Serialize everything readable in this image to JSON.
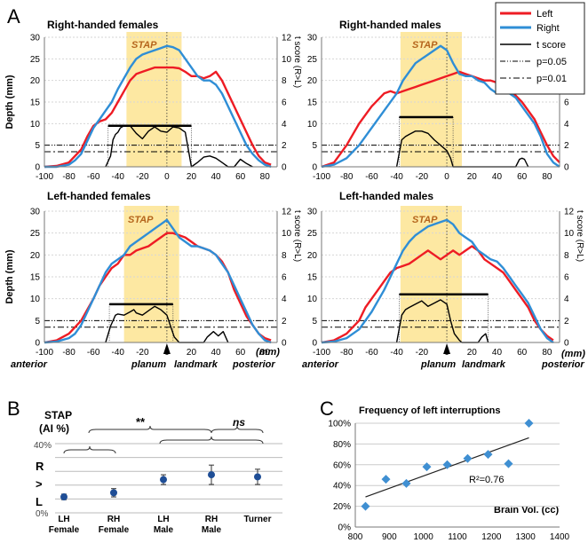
{
  "panel_labels": {
    "a": "A",
    "b": "B",
    "c": "C"
  },
  "panel_a": {
    "left_axis_label": "Depth (mm)",
    "right_axis_label": "t score (R>L)",
    "stap_label": "STAP",
    "x_ticks": [
      -100,
      -80,
      -60,
      -40,
      -20,
      0,
      20,
      40,
      60,
      80
    ],
    "depth_ticks": [
      0,
      5,
      10,
      15,
      20,
      25,
      30
    ],
    "t_ticks": [
      0,
      2,
      4,
      6,
      8,
      10,
      12
    ],
    "bottom_labels": {
      "anterior": "anterior",
      "planum": "planum",
      "landmark": "landmark",
      "mm": "(mm)",
      "posterior": "posterior"
    },
    "legend": {
      "left": "Left",
      "right": "Right",
      "t": "t score",
      "p05": "p=0.05",
      "p01": "p=0.01"
    },
    "colors": {
      "left": "#ee1c24",
      "right": "#2f8ed6",
      "stap": "#fde8a2"
    }
  },
  "panel_b": {
    "title_line1": "STAP",
    "title_line2": "(AI %)",
    "y_ticks": [
      "40%",
      "0%"
    ],
    "letters": [
      "R",
      ">",
      "L"
    ],
    "sig_labels": [
      "**",
      "ns"
    ],
    "categories": [
      [
        "LH",
        "Female"
      ],
      [
        "RH",
        "Female"
      ],
      [
        "LH",
        "Male"
      ],
      [
        "RH",
        "Male"
      ],
      [
        "Turner",
        ""
      ]
    ]
  },
  "panel_c": {
    "title": "Frequency of left interruptions",
    "x_label": "Brain Vol. (cc)",
    "r2_label": "R²=0.76",
    "x_ticks": [
      "800",
      "900",
      "1000",
      "1100",
      "1200",
      "1300",
      "1400"
    ],
    "y_ticks": [
      "0%",
      "20%",
      "40%",
      "60%",
      "80%",
      "100%"
    ]
  },
  "chart_data": [
    {
      "type": "line",
      "title": "Right-handed females",
      "xlim": [
        -100,
        90
      ],
      "ylim": [
        0,
        30
      ],
      "y2lim": [
        0,
        12
      ],
      "stap": [
        -33,
        12
      ],
      "series": [
        {
          "name": "Left",
          "x": [
            -100,
            -90,
            -80,
            -70,
            -65,
            -60,
            -55,
            -50,
            -45,
            -40,
            -35,
            -30,
            -25,
            -20,
            -15,
            -10,
            -5,
            0,
            5,
            10,
            15,
            20,
            25,
            30,
            35,
            40,
            45,
            50,
            55,
            60,
            65,
            70,
            75,
            80,
            85
          ],
          "y": [
            0,
            0.2,
            1,
            4,
            7,
            9.5,
            10.5,
            11,
            12.5,
            15,
            17.5,
            20,
            21.5,
            22,
            22.5,
            23,
            23,
            23,
            23,
            22.8,
            22,
            21,
            21,
            20.5,
            21,
            22,
            20,
            17,
            14,
            11,
            8,
            5,
            2.5,
            1,
            0.5
          ]
        },
        {
          "name": "Right",
          "x": [
            -100,
            -90,
            -80,
            -75,
            -70,
            -65,
            -60,
            -55,
            -50,
            -45,
            -40,
            -35,
            -30,
            -25,
            -20,
            -15,
            -10,
            -5,
            0,
            5,
            10,
            15,
            20,
            25,
            30,
            35,
            40,
            45,
            50,
            55,
            60,
            65,
            70,
            75,
            80,
            85
          ],
          "y": [
            0,
            0,
            0.5,
            1.5,
            3,
            6,
            9,
            11,
            13,
            15,
            18,
            20.5,
            23,
            25,
            26,
            26.5,
            27,
            27.5,
            28,
            27.7,
            27,
            25,
            23,
            21,
            20,
            20,
            19,
            17,
            14,
            11,
            8,
            5,
            3,
            1.5,
            0.5,
            0
          ]
        },
        {
          "name": "t score",
          "x": [
            -50,
            -46,
            -44,
            -42,
            -40,
            -38,
            -35,
            -30,
            -25,
            -20,
            -15,
            -10,
            -5,
            0,
            5,
            10,
            15,
            20,
            25,
            30,
            35,
            40,
            45,
            50,
            55,
            60,
            65,
            70
          ],
          "y": [
            0,
            1,
            2.5,
            3,
            3.2,
            3.6,
            3.8,
            3.8,
            3.1,
            2.6,
            3.3,
            3.7,
            3.3,
            3.2,
            3.7,
            3.6,
            3.2,
            0,
            0.4,
            0.9,
            1,
            0.8,
            0.4,
            0,
            0,
            0.7,
            0.3,
            0
          ]
        }
      ],
      "threshold_p05": 2,
      "threshold_p01": 1.4,
      "cluster": [
        -48,
        20,
        3.8
      ]
    },
    {
      "type": "line",
      "title": "Right-handed males",
      "xlim": [
        -100,
        90
      ],
      "ylim": [
        0,
        30
      ],
      "y2lim": [
        0,
        12
      ],
      "stap": [
        -37,
        12
      ],
      "series": [
        {
          "name": "Left",
          "x": [
            -100,
            -90,
            -80,
            -70,
            -60,
            -50,
            -45,
            -40,
            -35,
            -30,
            -25,
            -20,
            -15,
            -10,
            -5,
            0,
            5,
            10,
            15,
            20,
            25,
            30,
            35,
            40,
            45,
            50,
            55,
            60,
            65,
            70,
            75,
            80,
            85,
            90
          ],
          "y": [
            0,
            1,
            5,
            10,
            14,
            17,
            17.5,
            17,
            17.5,
            18,
            18.5,
            19,
            19.5,
            20,
            20.5,
            21,
            21.5,
            22,
            21.5,
            21,
            20.5,
            20,
            20,
            19.5,
            19,
            18,
            16.5,
            15,
            13,
            11,
            8,
            5,
            2.5,
            1
          ]
        },
        {
          "name": "Right",
          "x": [
            -100,
            -90,
            -80,
            -70,
            -60,
            -50,
            -40,
            -35,
            -30,
            -25,
            -20,
            -15,
            -10,
            -5,
            0,
            5,
            10,
            15,
            20,
            25,
            30,
            35,
            40,
            45,
            50,
            55,
            60,
            65,
            70,
            75,
            80,
            85,
            90
          ],
          "y": [
            0,
            0.5,
            2,
            5,
            9,
            13,
            17,
            20,
            22,
            24,
            25,
            26,
            27,
            28,
            27,
            24,
            21.5,
            21,
            21,
            20,
            19.5,
            18,
            17,
            17.5,
            17,
            16,
            14,
            12,
            10,
            7,
            3,
            1,
            0
          ]
        },
        {
          "name": "t score",
          "x": [
            -40,
            -36,
            -33,
            -30,
            -25,
            -20,
            -15,
            -10,
            -5,
            0,
            3,
            5,
            55,
            58,
            60,
            62,
            65
          ],
          "y": [
            0,
            2.5,
            2.8,
            3,
            3.3,
            3.3,
            3.1,
            2.5,
            2,
            1.5,
            0.8,
            0,
            0,
            0.7,
            0.8,
            0.7,
            0
          ]
        }
      ],
      "threshold_p05": 2,
      "threshold_p01": 1.4,
      "cluster": [
        -38,
        5,
        4.6
      ]
    },
    {
      "type": "line",
      "title": "Left-handed females",
      "xlim": [
        -100,
        90
      ],
      "ylim": [
        0,
        30
      ],
      "y2lim": [
        0,
        12
      ],
      "stap": [
        -35,
        10
      ],
      "series": [
        {
          "name": "Left",
          "x": [
            -100,
            -90,
            -80,
            -70,
            -60,
            -55,
            -50,
            -45,
            -40,
            -35,
            -30,
            -25,
            -20,
            -15,
            -10,
            -5,
            0,
            5,
            10,
            15,
            20,
            25,
            30,
            35,
            40,
            45,
            50,
            55,
            60,
            65,
            70,
            75,
            80,
            85
          ],
          "y": [
            0,
            0.5,
            2,
            5,
            10,
            13,
            15,
            17,
            18,
            20,
            20,
            21,
            21.5,
            22,
            23,
            24,
            25,
            25,
            24.5,
            24,
            23,
            22,
            21.5,
            21,
            20,
            18.5,
            16,
            12,
            9,
            6,
            4,
            2,
            1,
            0.5
          ]
        },
        {
          "name": "Right",
          "x": [
            -100,
            -90,
            -80,
            -75,
            -70,
            -65,
            -60,
            -55,
            -50,
            -45,
            -40,
            -35,
            -30,
            -25,
            -20,
            -15,
            -10,
            -5,
            0,
            5,
            10,
            15,
            20,
            25,
            30,
            35,
            40,
            45,
            50,
            55,
            60,
            65,
            70,
            75,
            80,
            85
          ],
          "y": [
            0,
            0.2,
            1,
            2,
            4,
            7,
            10,
            13,
            16,
            18,
            19,
            20,
            22,
            23,
            24,
            25,
            26,
            27,
            28,
            26,
            24,
            23,
            22,
            22,
            21.5,
            21,
            20,
            18,
            16,
            13,
            10,
            7,
            4,
            2,
            0.5,
            0
          ]
        },
        {
          "name": "t score",
          "x": [
            -50,
            -46,
            -42,
            -40,
            -35,
            -30,
            -27,
            -25,
            -20,
            -15,
            -10,
            -5,
            0,
            3,
            6,
            10,
            30,
            33,
            38,
            42,
            46,
            50
          ],
          "y": [
            0,
            1.5,
            2.5,
            2.6,
            2.5,
            2.8,
            3,
            2.7,
            2.5,
            2.9,
            3.3,
            3,
            2.5,
            1.5,
            0.5,
            0,
            0,
            0.5,
            1,
            0.6,
            1,
            0
          ]
        }
      ],
      "threshold_p05": 2,
      "threshold_p01": 1.4,
      "cluster": [
        -47,
        5,
        3.5
      ]
    },
    {
      "type": "line",
      "title": "Left-handed males",
      "xlim": [
        -100,
        90
      ],
      "ylim": [
        0,
        30
      ],
      "y2lim": [
        0,
        12
      ],
      "stap": [
        -37,
        12
      ],
      "series": [
        {
          "name": "Left",
          "x": [
            -100,
            -90,
            -80,
            -70,
            -65,
            -60,
            -55,
            -50,
            -45,
            -40,
            -35,
            -30,
            -25,
            -20,
            -15,
            -10,
            -5,
            0,
            5,
            10,
            15,
            20,
            25,
            30,
            35,
            40,
            45,
            50,
            55,
            60,
            65,
            70,
            75,
            80,
            85
          ],
          "y": [
            0,
            0.5,
            2,
            5,
            8,
            10,
            12,
            14,
            16,
            17,
            17.5,
            18,
            19,
            20,
            21,
            20,
            19,
            20,
            21,
            20,
            21,
            22,
            21,
            19,
            18,
            17,
            16,
            14,
            12,
            10,
            8,
            5,
            3,
            1.5,
            0.5
          ]
        },
        {
          "name": "Right",
          "x": [
            -100,
            -90,
            -80,
            -70,
            -60,
            -50,
            -45,
            -40,
            -35,
            -30,
            -25,
            -20,
            -15,
            -10,
            -5,
            0,
            5,
            10,
            15,
            20,
            25,
            30,
            35,
            40,
            45,
            50,
            55,
            60,
            65,
            70,
            75,
            80,
            85
          ],
          "y": [
            0,
            0.2,
            1,
            3,
            7,
            12,
            15,
            18,
            21,
            23,
            24.5,
            25.5,
            26.5,
            27,
            27.5,
            28,
            27,
            25,
            24,
            23,
            21,
            20,
            19,
            18.5,
            17,
            15,
            13,
            11,
            9,
            6,
            3,
            1,
            0
          ]
        },
        {
          "name": "t score",
          "x": [
            -40,
            -36,
            -33,
            -30,
            -25,
            -20,
            -15,
            -10,
            -5,
            0,
            3,
            6,
            10,
            12,
            15,
            25,
            28,
            31,
            33
          ],
          "y": [
            0,
            2.5,
            3,
            3.2,
            3.5,
            3.8,
            3.3,
            3.6,
            3.9,
            3.5,
            2,
            0.8,
            0.2,
            0,
            0,
            0,
            0.5,
            0.8,
            0
          ]
        }
      ],
      "threshold_p05": 2,
      "threshold_p01": 1.4,
      "cluster": [
        -38,
        33,
        4.4
      ]
    },
    {
      "type": "scatter",
      "title": "STAP (AI %)",
      "categories": [
        "LH Female",
        "RH Female",
        "LH Male",
        "RH Male",
        "Turner"
      ],
      "ylim": [
        0,
        50
      ],
      "values": [
        11.5,
        14.5,
        24,
        27.5,
        26
      ],
      "error": [
        2,
        3,
        3.5,
        7,
        5.5
      ]
    },
    {
      "type": "scatter",
      "title": "Frequency of left interruptions",
      "xlabel": "Brain Vol. (cc)",
      "xlim": [
        800,
        1400
      ],
      "ylim": [
        0,
        100
      ],
      "x": [
        830,
        890,
        950,
        1010,
        1070,
        1130,
        1190,
        1250,
        1310
      ],
      "y": [
        20,
        46,
        42,
        58,
        60,
        66,
        70,
        61,
        100
      ],
      "trend": [
        [
          830,
          29
        ],
        [
          1310,
          86
        ]
      ]
    }
  ]
}
